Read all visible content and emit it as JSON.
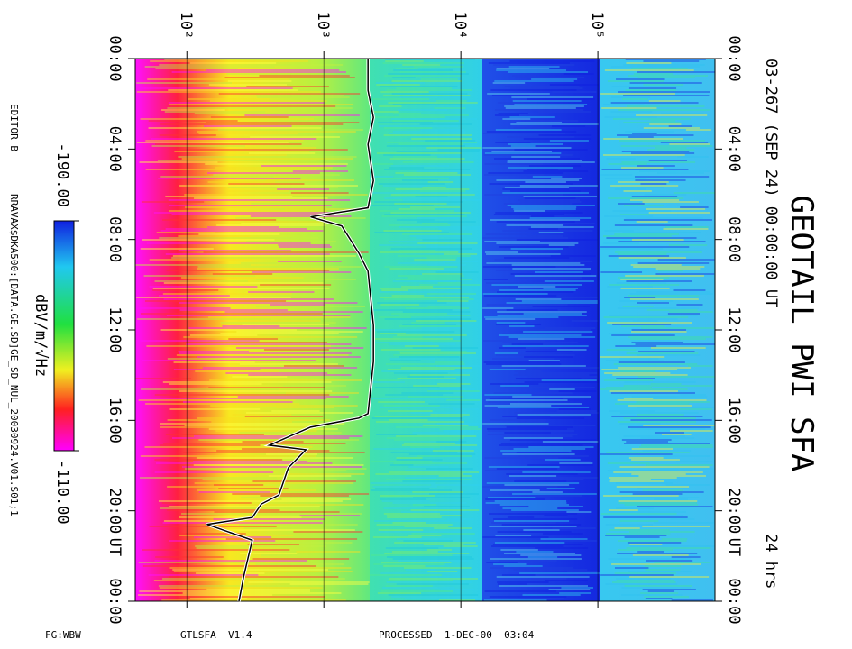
{
  "chart_data": {
    "type": "spectrogram",
    "title": "GEOTAIL PWI SFA",
    "subtitle": "03-267 (SEP 24) 00:00:00 UT",
    "duration_label": "24 hrs",
    "time_unit": "UT",
    "editor": "EDITOR B",
    "file": "RRAVAX$DKA500:[DATA.GE.SD]GE_SD_NUL_20030924.V01.S01;1",
    "footer": [
      "FG:WBW",
      "GTLSFA  V1.4",
      "PROCESSED  1-DEC-00  03:04"
    ],
    "xlim": [
      0,
      24
    ],
    "xticks": [
      {
        "value": 0,
        "label": "00:00"
      },
      {
        "value": 4,
        "label": "04:00"
      },
      {
        "value": 8,
        "label": "08:00"
      },
      {
        "value": 12,
        "label": "12:00"
      },
      {
        "value": 16,
        "label": "16:00"
      },
      {
        "value": 20,
        "label": "20:00"
      },
      {
        "value": 24,
        "label": "00:00"
      }
    ],
    "ylim": [
      42,
      716000
    ],
    "log_scale": true,
    "yticks": [
      {
        "value": 100,
        "label": "10²"
      },
      {
        "value": 1000,
        "label": "10³"
      },
      {
        "value": 10000,
        "label": "10⁴"
      },
      {
        "value": 100000,
        "label": "10⁵"
      }
    ],
    "x": [
      0,
      1.4,
      2.6,
      3.8,
      5.4,
      6.6,
      7.0,
      7.4,
      8.6,
      9.4,
      11.8,
      13.4,
      15.7,
      15.9,
      16.3,
      17.1,
      17.3,
      18.1,
      19.3,
      19.7,
      20.3,
      20.6,
      21.3,
      22.9,
      24
    ],
    "values": [
      2100,
      2100,
      2300,
      2100,
      2300,
      2100,
      800,
      1350,
      1800,
      2100,
      2300,
      2300,
      2100,
      1800,
      800,
      400,
      740,
      550,
      470,
      350,
      300,
      140,
      300,
      260,
      240
    ],
    "color": "#000000",
    "colorbar": {
      "label": "dBV/m/√Hz",
      "ticks": [
        {
          "value": -190,
          "label": "-190.00"
        },
        {
          "value": -110,
          "label": "-110.00"
        }
      ]
    }
  }
}
